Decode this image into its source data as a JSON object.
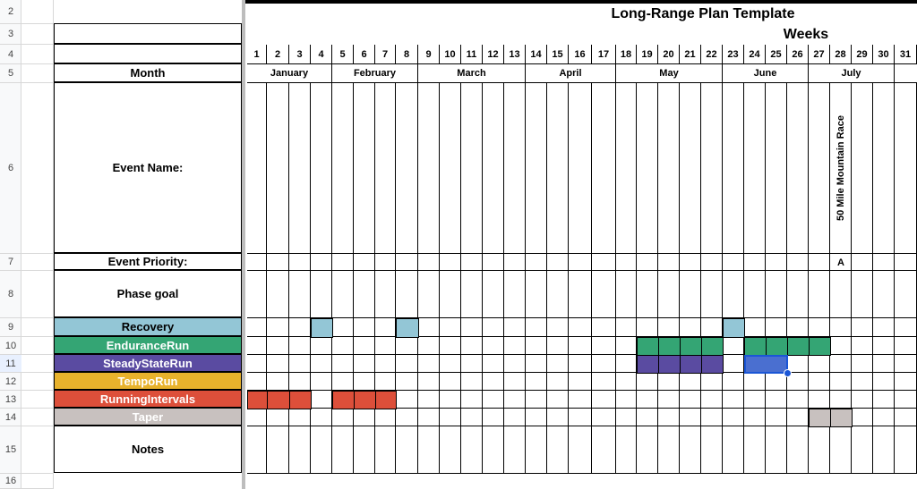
{
  "title": "Long-Range Plan Template",
  "weeks_label": "Weeks",
  "labels": {
    "month": "Month",
    "event_name": "Event Name:",
    "event_priority": "Event Priority:",
    "phase_goal": "Phase goal",
    "notes": "Notes"
  },
  "row_numbers": [
    "2",
    "3",
    "4",
    "5",
    "6",
    "7",
    "8",
    "9",
    "10",
    "11",
    "12",
    "13",
    "14",
    "15",
    "16"
  ],
  "week_numbers": [
    "1",
    "2",
    "3",
    "4",
    "5",
    "6",
    "7",
    "8",
    "9",
    "10",
    "11",
    "12",
    "13",
    "14",
    "15",
    "16",
    "17",
    "18",
    "19",
    "20",
    "21",
    "22",
    "23",
    "24",
    "25",
    "26",
    "27",
    "28",
    "29",
    "30",
    "31"
  ],
  "months": [
    {
      "name": "January",
      "start": 1,
      "end": 4
    },
    {
      "name": "February",
      "start": 5,
      "end": 8
    },
    {
      "name": "March",
      "start": 9,
      "end": 13
    },
    {
      "name": "April",
      "start": 14,
      "end": 17
    },
    {
      "name": "May",
      "start": 18,
      "end": 22
    },
    {
      "name": "June",
      "start": 23,
      "end": 26
    },
    {
      "name": "July",
      "start": 27,
      "end": 30
    }
  ],
  "event": {
    "week": 28,
    "name": "50 Mile Mountain Race",
    "priority": "A"
  },
  "categories": [
    {
      "key": "recovery",
      "label": "Recovery",
      "color": "#93c6d6",
      "text_color": "#000000",
      "weeks": [
        4,
        8,
        23
      ]
    },
    {
      "key": "endurance",
      "label": "EnduranceRun",
      "color": "#34a574",
      "text_color": "#ffffff",
      "weeks": [
        19,
        20,
        21,
        22,
        24,
        25,
        26,
        27
      ]
    },
    {
      "key": "steady",
      "label": "SteadyStateRun",
      "color": "#5a4ba1",
      "text_color": "#ffffff",
      "weeks": [
        19,
        20,
        21,
        22,
        24,
        25
      ]
    },
    {
      "key": "tempo",
      "label": "TempoRun",
      "color": "#e8b22c",
      "text_color": "#ffffff",
      "weeks": []
    },
    {
      "key": "intervals",
      "label": "RunningIntervals",
      "color": "#dd4f3a",
      "text_color": "#ffffff",
      "weeks": [
        1,
        2,
        3,
        5,
        6,
        7
      ]
    },
    {
      "key": "taper",
      "label": "Taper",
      "color": "#c8c1bf",
      "text_color": "#ffffff",
      "weeks": [
        27,
        28
      ]
    }
  ],
  "selection": {
    "row_label": "11",
    "weeks": [
      24,
      25
    ],
    "color": "#4a6fd0",
    "border": "#1a56d6"
  },
  "colors": {
    "grid": "#000000",
    "light_grid": "#d8d8d8",
    "header_bg": "#f8f9fa",
    "selected_row_bg": "#e8f0fe",
    "frozen_divider": "#bdbdbd"
  }
}
